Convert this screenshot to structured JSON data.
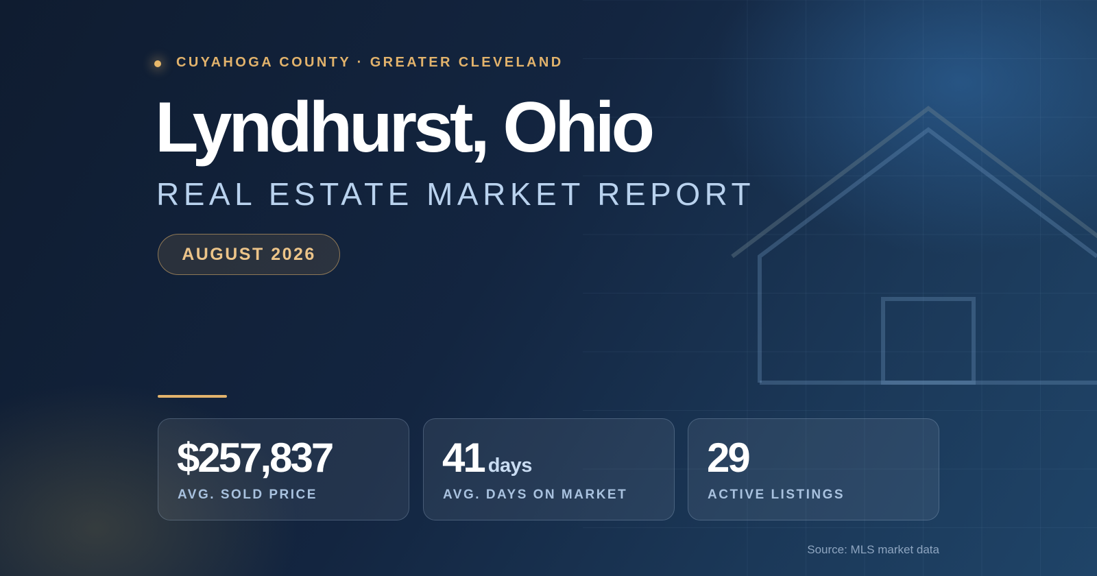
{
  "eyebrow": "CUYAHOGA COUNTY · GREATER CLEVELAND",
  "title": "Lyndhurst, Ohio",
  "subtitle": "REAL ESTATE MARKET REPORT",
  "badge": "AUGUST 2026",
  "stats": [
    {
      "value": "$257,837",
      "label": "AVG. SOLD PRICE"
    },
    {
      "value": "41",
      "unit": "days",
      "label": "AVG. DAYS ON MARKET"
    },
    {
      "value": "29",
      "label": "ACTIVE LISTINGS"
    }
  ],
  "source": "Source: MLS market data"
}
